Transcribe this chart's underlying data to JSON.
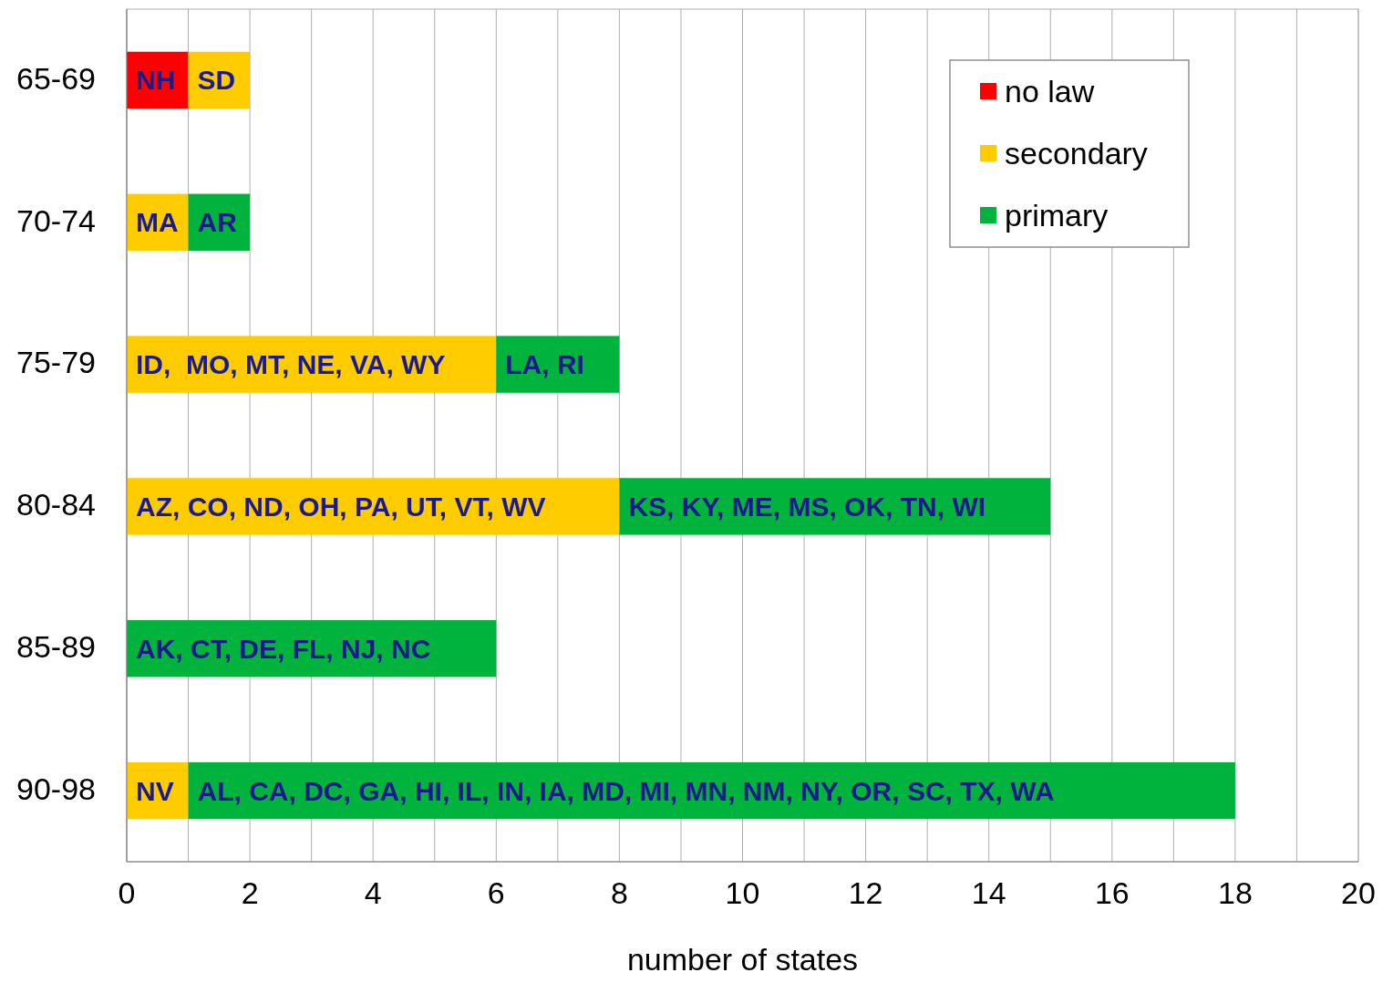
{
  "chart_data": {
    "type": "bar",
    "orientation": "horizontal",
    "stacked": true,
    "xlabel": "number of states",
    "categories": [
      "65-69",
      "70-74",
      "75-79",
      "80-84",
      "85-89",
      "90-98"
    ],
    "series": [
      {
        "name": "no law",
        "color": "#ff0000",
        "values": [
          1,
          0,
          0,
          0,
          0,
          0
        ],
        "value_labels": [
          "NH",
          null,
          null,
          null,
          null,
          null
        ]
      },
      {
        "name": "secondary",
        "color": "#ffcc00",
        "values": [
          1,
          1,
          6,
          8,
          0,
          1
        ],
        "value_labels": [
          "SD",
          "MA",
          "ID,  MO, MT, NE, VA, WY",
          "AZ, CO, ND, OH, PA, UT, VT, WV",
          null,
          "NV"
        ]
      },
      {
        "name": "primary",
        "color": "#00b33c",
        "values": [
          0,
          1,
          2,
          7,
          6,
          17
        ],
        "value_labels": [
          null,
          "AR",
          "LA, RI",
          "KS, KY, ME, MS, OK, TN, WI",
          "AK, CT, DE, FL, NJ, NC",
          "AL, CA, DC, GA, HI, IL, IN, IA, MD, MI, MN, NM, NY, OR, SC, TX, WA"
        ]
      }
    ],
    "xlim": [
      0,
      20
    ],
    "xticks": [
      0,
      {
        "value": 1,
        "label": null
      },
      2,
      {
        "value": 3,
        "label": null
      },
      4,
      {
        "value": 5,
        "label": null
      },
      6,
      {
        "value": 7,
        "label": null
      },
      8,
      {
        "value": 9,
        "label": null
      },
      10,
      {
        "value": 11,
        "label": null
      },
      12,
      {
        "value": 13,
        "label": null
      },
      14,
      {
        "value": 15,
        "label": null
      },
      16,
      {
        "value": 17,
        "label": null
      },
      18,
      {
        "value": 19,
        "label": null
      },
      20
    ],
    "grid": "x",
    "legend": "top right"
  }
}
